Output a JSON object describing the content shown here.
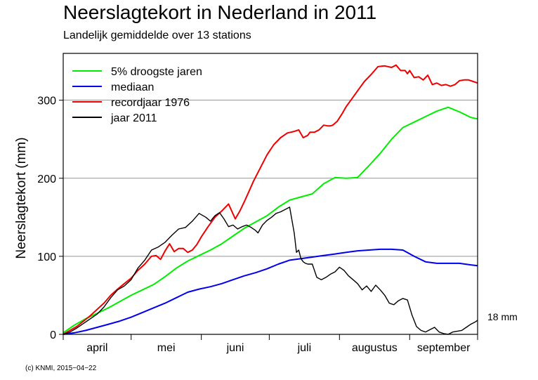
{
  "header": {
    "title": "Neerslagtekort in Nederland in 2011",
    "subtitle": "Landelijk gemiddelde over 13 stations"
  },
  "footer": {
    "copyright": "(c) KNMI, 2015−04−22"
  },
  "chart_data": {
    "type": "line",
    "title": "Neerslagtekort in Nederland in 2011",
    "subtitle": "Landelijk gemiddelde over 13 stations",
    "xlabel": "",
    "ylabel": "Neerslagtekort (mm)",
    "x_unit": "day of season (1 april = 0)",
    "xlim": [
      0,
      183
    ],
    "ylim": [
      0,
      360
    ],
    "yticks": [
      0,
      100,
      200,
      300
    ],
    "ytick_labels": [
      "0",
      "100",
      "200",
      "300"
    ],
    "month_ticks": [
      0,
      30,
      61,
      91,
      122,
      153,
      183
    ],
    "month_labels": [
      {
        "label": "april",
        "pos": 15
      },
      {
        "label": "mei",
        "pos": 45.5
      },
      {
        "label": "juni",
        "pos": 76
      },
      {
        "label": "juli",
        "pos": 106.5
      },
      {
        "label": "augustus",
        "pos": 137.5
      },
      {
        "label": "september",
        "pos": 168
      }
    ],
    "grid": true,
    "legend_position": "top-left",
    "end_annotation": "18 mm",
    "series": [
      {
        "name": "5% droogste jaren",
        "color": "#00ee00",
        "x": [
          0,
          5,
          10,
          15,
          20,
          25,
          30,
          35,
          40,
          45,
          50,
          55,
          60,
          65,
          70,
          75,
          80,
          85,
          90,
          95,
          100,
          105,
          110,
          115,
          120,
          125,
          130,
          135,
          140,
          145,
          150,
          155,
          160,
          165,
          170,
          175,
          180,
          183
        ],
        "y": [
          2,
          12,
          20,
          27,
          34,
          42,
          50,
          57,
          64,
          74,
          85,
          94,
          101,
          108,
          116,
          126,
          136,
          144,
          152,
          163,
          172,
          176,
          180,
          193,
          201,
          200,
          201,
          216,
          232,
          250,
          265,
          272,
          279,
          286,
          291,
          285,
          278,
          276
        ]
      },
      {
        "name": "mediaan",
        "color": "#0000ee",
        "x": [
          0,
          5,
          10,
          15,
          20,
          25,
          30,
          35,
          40,
          45,
          50,
          55,
          60,
          65,
          70,
          75,
          80,
          85,
          90,
          95,
          100,
          105,
          110,
          115,
          120,
          125,
          130,
          135,
          140,
          145,
          150,
          155,
          160,
          165,
          170,
          175,
          180,
          183
        ],
        "y": [
          0,
          2,
          5,
          9,
          13,
          17,
          22,
          28,
          34,
          40,
          47,
          54,
          58,
          61,
          65,
          70,
          75,
          79,
          84,
          90,
          95,
          97,
          99,
          101,
          103,
          105,
          107,
          108,
          109,
          109,
          108,
          100,
          93,
          91,
          91,
          91,
          89,
          88
        ]
      },
      {
        "name": "recordjaar 1976",
        "color": "#ee0000",
        "x": [
          0,
          3,
          6,
          9,
          12,
          15,
          18,
          21,
          24,
          27,
          30,
          33,
          36,
          39,
          41,
          43,
          45,
          47,
          49,
          51,
          53,
          55,
          57,
          59,
          61,
          64,
          67,
          70,
          73,
          76,
          78,
          80,
          82,
          84,
          87,
          90,
          93,
          96,
          99,
          102,
          104,
          106,
          108,
          109,
          111,
          113,
          115,
          117,
          118,
          119,
          121,
          123,
          125,
          127,
          129,
          131,
          133,
          136,
          139,
          142,
          145,
          147,
          149,
          151,
          152,
          153,
          155,
          157,
          159,
          161,
          163,
          165,
          167,
          169,
          171,
          173,
          175,
          177,
          179,
          181,
          183
        ],
        "y": [
          0,
          5,
          10,
          17,
          24,
          32,
          40,
          50,
          58,
          65,
          72,
          82,
          90,
          100,
          101,
          96,
          107,
          116,
          106,
          110,
          110,
          105,
          108,
          115,
          125,
          138,
          150,
          158,
          167,
          148,
          158,
          170,
          183,
          196,
          213,
          230,
          243,
          252,
          258,
          260,
          262,
          252,
          255,
          259,
          259,
          262,
          268,
          267,
          267,
          268,
          273,
          282,
          292,
          300,
          308,
          316,
          324,
          333,
          343,
          344,
          342,
          345,
          338,
          338,
          334,
          338,
          329,
          330,
          326,
          332,
          320,
          322,
          319,
          320,
          318,
          320,
          325,
          326,
          326,
          324,
          322
        ]
      },
      {
        "name": "jaar 2011",
        "color": "#000000",
        "x": [
          0,
          3,
          6,
          9,
          12,
          15,
          18,
          21,
          24,
          27,
          30,
          33,
          36,
          39,
          42,
          45,
          48,
          51,
          54,
          57,
          60,
          63,
          65,
          67,
          69,
          71,
          73,
          75,
          77,
          79,
          81,
          83,
          85,
          86,
          88,
          90,
          92,
          94,
          96,
          98,
          100,
          102,
          103,
          104,
          105,
          106,
          107,
          108,
          110,
          112,
          114,
          116,
          118,
          120,
          122,
          124,
          126,
          128,
          130,
          132,
          134,
          136,
          138,
          140,
          142,
          144,
          146,
          148,
          150,
          152,
          154,
          156,
          158,
          160,
          162,
          164,
          166,
          168,
          170,
          172,
          174,
          176,
          178,
          180,
          182,
          183
        ],
        "y": [
          0,
          3,
          8,
          14,
          20,
          26,
          35,
          47,
          57,
          62,
          70,
          85,
          95,
          108,
          112,
          118,
          127,
          135,
          137,
          145,
          155,
          150,
          145,
          152,
          156,
          148,
          138,
          140,
          135,
          138,
          140,
          137,
          133,
          130,
          140,
          146,
          150,
          155,
          157,
          160,
          163,
          130,
          105,
          108,
          97,
          93,
          91,
          90,
          90,
          73,
          70,
          73,
          77,
          80,
          86,
          82,
          75,
          70,
          65,
          57,
          62,
          55,
          63,
          57,
          50,
          40,
          38,
          43,
          46,
          44,
          25,
          10,
          5,
          3,
          6,
          9,
          3,
          1,
          0,
          3,
          4,
          5,
          9,
          13,
          16,
          18
        ]
      }
    ]
  }
}
